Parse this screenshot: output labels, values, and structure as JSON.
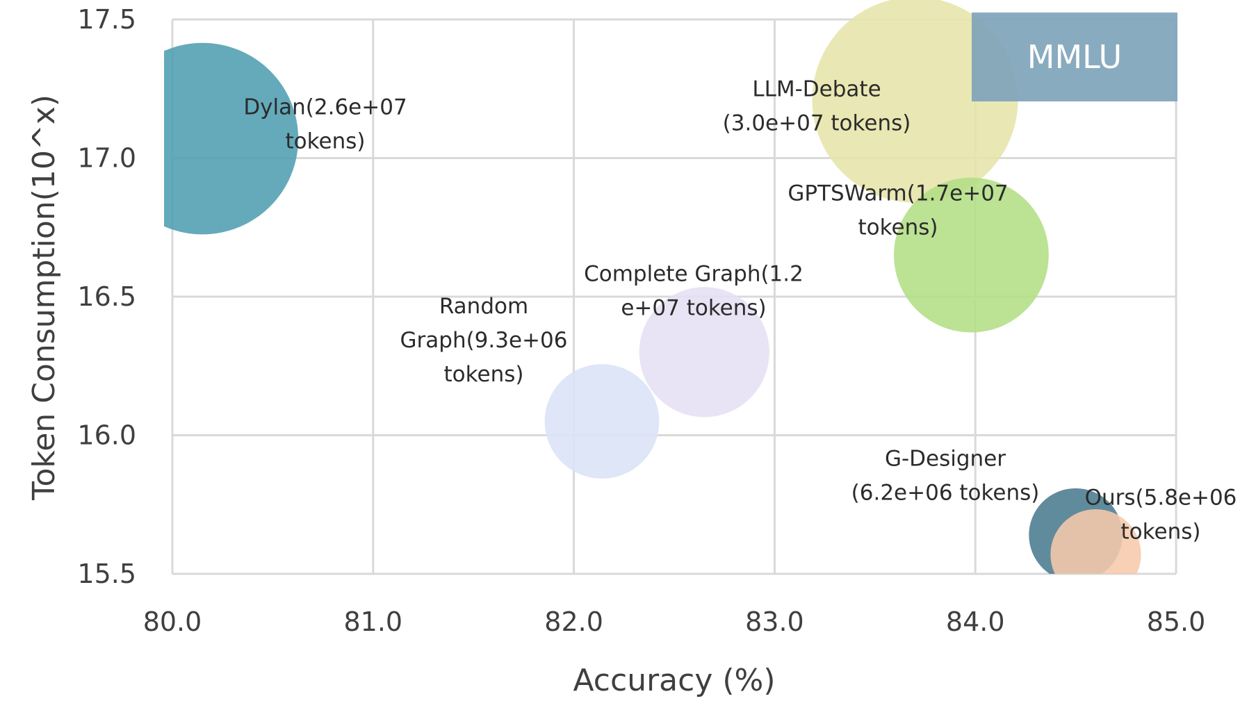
{
  "chart_data": {
    "type": "bubble-scatter",
    "title": "MMLU",
    "xlabel": "Accuracy (%)",
    "ylabel": "Token Consumption(10^x)",
    "xlim": [
      80.0,
      85.0
    ],
    "ylim": [
      15.5,
      17.5
    ],
    "xticks": [
      "80.0",
      "81.0",
      "82.0",
      "83.0",
      "84.0",
      "85.0"
    ],
    "yticks": [
      "15.5",
      "16.0",
      "16.5",
      "17.0",
      "17.5"
    ],
    "grid": true,
    "points": [
      {
        "name": "Dylan",
        "x": 80.15,
        "y": 17.07,
        "size": 26000000.0,
        "color": "#4e9eb0",
        "label": [
          "Dylan(2.6e+07",
          "tokens)"
        ]
      },
      {
        "name": "LLM-Debate",
        "x": 83.7,
        "y": 17.21,
        "size": 30000000.0,
        "color": "#e6e4a8",
        "label": [
          "LLM-Debate",
          "(3.0e+07 tokens)"
        ]
      },
      {
        "name": "GPTSWarm",
        "x": 83.98,
        "y": 16.65,
        "size": 17000000.0,
        "color": "#b3de85",
        "label": [
          "GPTSWarm(1.7e+07",
          "tokens)"
        ]
      },
      {
        "name": "Complete Graph",
        "x": 82.65,
        "y": 16.3,
        "size": 12000000.0,
        "color": "#e5e0f4",
        "label": [
          "Complete Graph(1.2",
          "e+07 tokens)"
        ]
      },
      {
        "name": "Random Graph",
        "x": 82.14,
        "y": 16.05,
        "size": 9300000.0,
        "color": "#dae2f6",
        "label": [
          "Random",
          "Graph(9.3e+06",
          "tokens)"
        ]
      },
      {
        "name": "G-Designer",
        "x": 84.5,
        "y": 15.64,
        "size": 6200000.0,
        "color": "#4a7b90",
        "label": [
          "G-Designer",
          "(6.2e+06 tokens)"
        ]
      },
      {
        "name": "Ours",
        "x": 84.6,
        "y": 15.57,
        "size": 5800000.0,
        "color": "#f6c9ac",
        "label": [
          "Ours(5.8e+06",
          "tokens)"
        ]
      }
    ],
    "badge_color": "#7fa4ba"
  }
}
